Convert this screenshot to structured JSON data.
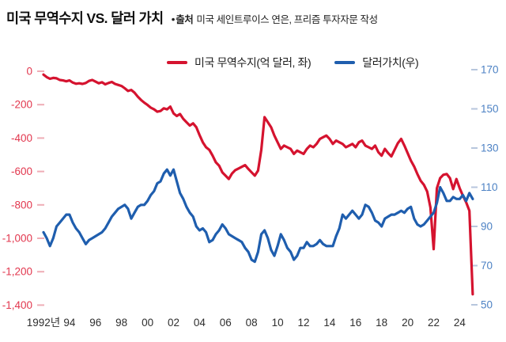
{
  "header": {
    "title": "미국 무역수지 VS. 달러 가치",
    "source_bullet": "●",
    "source_label": "출처",
    "source_text": "미국 세인트루이스 연은, 프리즘 투자자문 작성"
  },
  "legend": {
    "items": [
      {
        "label": "미국 무역수지(억 달러, 좌)",
        "color": "#d5132f"
      },
      {
        "label": "달러가치(우)",
        "color": "#1f5eae"
      }
    ]
  },
  "chart_data": {
    "type": "line",
    "title": "미국 무역수지 VS. 달러 가치",
    "grid": false,
    "background": "#ffffff",
    "x_axis": {
      "range": [
        1992,
        2025.2
      ],
      "label_color": "#2e2e2e",
      "labels": [
        {
          "label": "1992년",
          "year": 1992
        },
        {
          "label": "94",
          "year": 1994
        },
        {
          "label": "96",
          "year": 1996
        },
        {
          "label": "98",
          "year": 1998
        },
        {
          "label": "00",
          "year": 2000
        },
        {
          "label": "02",
          "year": 2002
        },
        {
          "label": "04",
          "year": 2004
        },
        {
          "label": "06",
          "year": 2006
        },
        {
          "label": "08",
          "year": 2008
        },
        {
          "label": "10",
          "year": 2010
        },
        {
          "label": "12",
          "year": 2012
        },
        {
          "label": "14",
          "year": 2014
        },
        {
          "label": "16",
          "year": 2016
        },
        {
          "label": "18",
          "year": 2018
        },
        {
          "label": "20",
          "year": 2020
        },
        {
          "label": "22",
          "year": 2022
        },
        {
          "label": "24",
          "year": 2024
        }
      ]
    },
    "left_axis": {
      "title": "억 달러",
      "range": [
        0,
        -1400
      ],
      "color": "#e2374e",
      "tick_color": "#efadb6",
      "ticks": [
        {
          "label": "0",
          "value": 0
        },
        {
          "label": "-200",
          "value": -200
        },
        {
          "label": "-400",
          "value": -400
        },
        {
          "label": "-600",
          "value": -600
        },
        {
          "label": "-800",
          "value": -800
        },
        {
          "label": "-1,000",
          "value": -1000
        },
        {
          "label": "-1,200",
          "value": -1200
        },
        {
          "label": "-1,400",
          "value": -1400
        }
      ]
    },
    "right_axis": {
      "title": "달러가치",
      "range": [
        170,
        50
      ],
      "color": "#4d82c4",
      "tick_color": "#b7c6dd",
      "ticks": [
        {
          "label": "170",
          "value": 170
        },
        {
          "label": "150",
          "value": 150
        },
        {
          "label": "130",
          "value": 130
        },
        {
          "label": "110",
          "value": 110
        },
        {
          "label": "90",
          "value": 90
        },
        {
          "label": "70",
          "value": 70
        },
        {
          "label": "50",
          "value": 50
        }
      ]
    },
    "series": [
      {
        "id": "trade-balance",
        "name": "미국 무역수지(억 달러, 좌)",
        "axis": "left",
        "color": "#d5132f",
        "x_start": 1992,
        "x_step": 0.25,
        "values": [
          -20,
          -35,
          -45,
          -40,
          -42,
          -52,
          -55,
          -60,
          -55,
          -68,
          -75,
          -72,
          -76,
          -70,
          -58,
          -52,
          -62,
          -72,
          -66,
          -78,
          -70,
          -64,
          -76,
          -82,
          -88,
          -102,
          -118,
          -112,
          -128,
          -152,
          -172,
          -188,
          -202,
          -218,
          -228,
          -242,
          -238,
          -222,
          -228,
          -212,
          -252,
          -268,
          -256,
          -285,
          -305,
          -325,
          -312,
          -335,
          -382,
          -425,
          -455,
          -470,
          -505,
          -545,
          -565,
          -605,
          -625,
          -645,
          -612,
          -592,
          -582,
          -572,
          -562,
          -585,
          -605,
          -625,
          -595,
          -470,
          -275,
          -305,
          -335,
          -385,
          -425,
          -465,
          -445,
          -455,
          -465,
          -495,
          -475,
          -485,
          -495,
          -465,
          -445,
          -455,
          -435,
          -405,
          -395,
          -385,
          -405,
          -435,
          -415,
          -425,
          -435,
          -455,
          -445,
          -435,
          -455,
          -425,
          -415,
          -445,
          -455,
          -465,
          -445,
          -485,
          -505,
          -465,
          -490,
          -510,
          -470,
          -430,
          -405,
          -445,
          -490,
          -535,
          -570,
          -615,
          -655,
          -680,
          -720,
          -815,
          -1065,
          -700,
          -640,
          -620,
          -615,
          -640,
          -705,
          -645,
          -700,
          -745,
          -785,
          -835,
          -1335
        ]
      },
      {
        "id": "dollar-index",
        "name": "달러가치(우)",
        "axis": "right",
        "color": "#1f5eae",
        "x_start": 1992,
        "x_step": 0.25,
        "values": [
          87,
          84,
          80,
          84,
          90,
          92,
          94,
          96,
          96,
          92,
          89,
          87,
          84,
          81,
          83,
          84,
          85,
          86,
          87,
          89,
          92,
          95,
          97,
          99,
          100,
          101,
          99,
          94,
          97,
          100,
          101,
          101,
          103,
          106,
          108,
          112,
          113,
          117,
          119,
          116,
          119,
          113,
          107,
          104,
          100,
          97,
          95,
          90,
          88,
          89,
          87,
          82,
          83,
          86,
          88,
          91,
          89,
          86,
          85,
          84,
          83,
          82,
          79,
          77,
          73,
          72,
          77,
          86,
          88,
          84,
          78,
          75,
          80,
          86,
          83,
          79,
          77,
          73,
          75,
          79,
          79,
          82,
          80,
          80,
          81,
          83,
          81,
          80,
          80,
          80,
          85,
          89,
          96,
          94,
          96,
          98,
          96,
          94,
          96,
          101,
          100,
          97,
          93,
          92,
          90,
          94,
          95,
          96,
          96,
          97,
          98,
          97,
          99,
          100,
          94,
          91,
          90,
          91,
          93,
          95,
          97,
          102,
          110,
          107,
          103,
          103,
          105,
          104,
          104,
          106,
          103,
          107,
          104
        ]
      }
    ]
  }
}
